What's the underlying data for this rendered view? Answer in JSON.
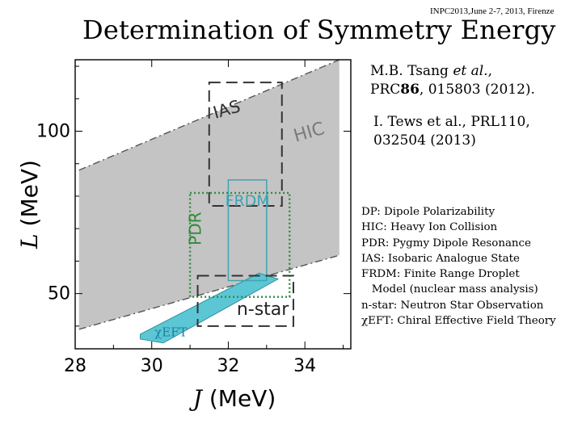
{
  "header": {
    "conference": "INPC2013,June 2-7, 2013, Firenze",
    "title": "Determination of Symmetry Energy"
  },
  "references": [
    {
      "prefix": "M.B. Tsang ",
      "etal": "et al.",
      "line1_suffix": ",",
      "line2_pre": "PRC",
      "volume": "86",
      "line2_post": ", 015803 (2012)."
    },
    {
      "line1": "I. Tews et al., PRL110,",
      "line2": "032504 (2013)"
    }
  ],
  "legend_lines": [
    "DP: Dipole Polarizability",
    "HIC: Heavy Ion Collision",
    "PDR: Pygmy Dipole Resonance",
    "IAS: Isobaric Analogue State",
    "FRDM: Finite Range Droplet",
    "   Model (nuclear mass analysis)",
    "n-star: Neutron Star Observation",
    "χEFT: Chiral Effective Field Theory"
  ],
  "chart_data": {
    "type": "area",
    "xlabel": {
      "symbol": "J",
      "unit": "(MeV)"
    },
    "ylabel": {
      "symbol": "L",
      "unit": "(MeV)"
    },
    "xlim": [
      28,
      35.2
    ],
    "ylim": [
      33,
      122
    ],
    "x_ticks": [
      28,
      30,
      32,
      34
    ],
    "y_ticks": [
      50,
      100
    ],
    "grid": false,
    "colors": {
      "HIC": "#c4c4c4",
      "IAS": "#333333",
      "FRDM": "#3fa3b3",
      "PDR": "#2e8b3a",
      "n-star": "#333333",
      "chiEFT": "#5cc6d4"
    },
    "regions": [
      {
        "name": "HIC",
        "label": "HIC",
        "shape": "band",
        "upper": [
          [
            28.1,
            88
          ],
          [
            34.9,
            122
          ]
        ],
        "lower": [
          [
            28.1,
            39
          ],
          [
            34.9,
            61.8
          ]
        ]
      },
      {
        "name": "IAS",
        "label": "IAS",
        "shape": "box",
        "x": [
          31.5,
          33.4
        ],
        "y": [
          77,
          115
        ]
      },
      {
        "name": "FRDM",
        "label": "FRDM",
        "shape": "box",
        "x": [
          32.0,
          33.0
        ],
        "y": [
          54,
          85
        ]
      },
      {
        "name": "PDR",
        "label": "PDR",
        "shape": "box",
        "x": [
          31.0,
          33.6
        ],
        "y": [
          49,
          81
        ]
      },
      {
        "name": "n-star",
        "label": "n-star",
        "shape": "box",
        "x": [
          31.2,
          33.7
        ],
        "y": [
          40,
          55.5
        ]
      },
      {
        "name": "chiEFT",
        "label": "χEFT",
        "shape": "polygon",
        "points": [
          [
            29.7,
            36
          ],
          [
            30.3,
            34.8
          ],
          [
            33.3,
            54.5
          ],
          [
            32.8,
            56.3
          ],
          [
            29.7,
            37.5
          ]
        ]
      }
    ]
  }
}
